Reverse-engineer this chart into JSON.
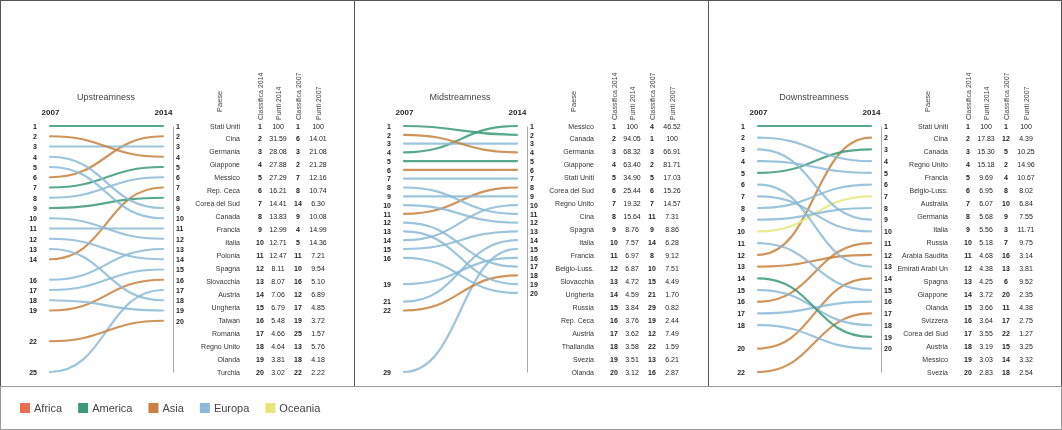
{
  "chart_data": [
    {
      "type": "line",
      "title": "Upstreamness",
      "categories": [
        "2007",
        "2014"
      ],
      "ylim": [
        25,
        1
      ],
      "yticks": [
        1,
        2,
        3,
        4,
        5,
        6,
        7,
        8,
        9,
        10,
        11,
        12,
        13,
        14,
        16,
        17,
        18,
        19,
        22,
        25
      ],
      "y2lim": [
        25,
        1
      ],
      "y2ticks": [
        1,
        2,
        3,
        4,
        5,
        6,
        7,
        8,
        9,
        10,
        11,
        12,
        13,
        14,
        15,
        16,
        17,
        18,
        19,
        20
      ],
      "series": [
        {
          "color": "#3a9a78",
          "values": [
            1,
            1
          ]
        },
        {
          "color": "#c8803c",
          "values": [
            6,
            2
          ]
        },
        {
          "color": "#8bbad6",
          "values": [
            3,
            3
          ]
        },
        {
          "color": "#c8803c",
          "values": [
            2,
            4
          ]
        },
        {
          "color": "#3a9a78",
          "values": [
            7,
            5
          ]
        },
        {
          "color": "#8bbad6",
          "values": [
            8,
            6
          ]
        },
        {
          "color": "#c8803c",
          "values": [
            14,
            7
          ]
        },
        {
          "color": "#3a9a78",
          "values": [
            9,
            8
          ]
        },
        {
          "color": "#8bbad6",
          "values": [
            4,
            9
          ]
        },
        {
          "color": "#8bbad6",
          "values": [
            5,
            10
          ]
        },
        {
          "color": "#8bbad6",
          "values": [
            11,
            11
          ]
        },
        {
          "color": "#8bbad6",
          "values": [
            10,
            12
          ]
        },
        {
          "color": "#8bbad6",
          "values": [
            16,
            13
          ]
        },
        {
          "color": "#8bbad6",
          "values": [
            12,
            14
          ]
        },
        {
          "color": "#8bbad6",
          "values": [
            17,
            15
          ]
        },
        {
          "color": "#c8803c",
          "values": [
            19,
            16
          ]
        },
        {
          "color": "#8bbad6",
          "values": [
            25,
            17
          ]
        },
        {
          "color": "#8bbad6",
          "values": [
            13,
            18
          ]
        },
        {
          "color": "#8bbad6",
          "values": [
            18,
            19
          ]
        },
        {
          "color": "#c8803c",
          "values": [
            22,
            20
          ]
        }
      ]
    },
    {
      "type": "other",
      "ylabel": "Paese",
      "data_labels": true,
      "categories": [
        "Stati Uniti",
        "Cina",
        "Germania",
        "Giappone",
        "Messico",
        "Rep. Ceca",
        "Corea del Sud",
        "Canada",
        "Francia",
        "Italia",
        "Polonia",
        "Spagna",
        "Slovacchia",
        "Austria",
        "Ungheria",
        "Taiwan",
        "Romania",
        "Regno Unito",
        "Olanda",
        "Turchia"
      ],
      "series": [
        {
          "name": "Classifica 2014",
          "values": [
            1,
            2,
            3,
            4,
            5,
            6,
            7,
            8,
            9,
            10,
            11,
            12,
            13,
            14,
            15,
            16,
            17,
            18,
            19,
            20
          ]
        },
        {
          "name": "Punti 2014",
          "values": [
            100,
            31.59,
            28.08,
            27.88,
            27.29,
            16.21,
            14.41,
            13.83,
            12.99,
            12.71,
            12.47,
            8.11,
            8.07,
            7.06,
            6.79,
            5.48,
            4.66,
            4.64,
            3.81,
            3.02
          ],
          "value_labels": [
            "100",
            "31.59",
            "28.08",
            "27.88",
            "27.29",
            "16.21",
            "14.41",
            "13.83",
            "12.99",
            "12.71",
            "12.47",
            "8.11",
            "8.07",
            "7.06",
            "6.79",
            "5.48",
            "4.66",
            "4.64",
            "3.81",
            "3.02"
          ]
        },
        {
          "name": "Classifica 2007",
          "values": [
            1,
            6,
            3,
            2,
            7,
            8,
            14,
            9,
            4,
            5,
            11,
            10,
            16,
            12,
            17,
            19,
            25,
            13,
            18,
            22
          ]
        },
        {
          "name": "Punti 2007",
          "values": [
            100,
            14.01,
            21.08,
            21.28,
            12.16,
            10.74,
            6.3,
            10.08,
            14.99,
            14.36,
            7.21,
            9.54,
            5.1,
            6.89,
            4.85,
            3.72,
            1.57,
            5.76,
            4.18,
            2.22
          ],
          "value_labels": [
            "100",
            "14.01",
            "21.08",
            "21.28",
            "12.16",
            "10.74",
            "6.30",
            "10.08",
            "14.99",
            "14.36",
            "7.21",
            "9.54",
            "5.10",
            "6.89",
            "4.85",
            "3.72",
            "1.57",
            "5.76",
            "4.18",
            "2.22"
          ]
        }
      ]
    },
    {
      "type": "line",
      "title": "Midstreamness",
      "categories": [
        "2007",
        "2014"
      ],
      "ylim": [
        29,
        1
      ],
      "yticks": [
        1,
        2,
        3,
        4,
        5,
        6,
        7,
        8,
        9,
        10,
        11,
        12,
        13,
        14,
        15,
        16,
        19,
        21,
        22,
        29
      ],
      "y2lim": [
        29,
        1
      ],
      "y2ticks": [
        1,
        2,
        3,
        4,
        5,
        6,
        7,
        8,
        9,
        10,
        11,
        12,
        13,
        14,
        15,
        16,
        17,
        18,
        19,
        20
      ],
      "series": [
        {
          "color": "#3a9a78",
          "values": [
            4,
            1
          ]
        },
        {
          "color": "#3a9a78",
          "values": [
            1,
            2
          ]
        },
        {
          "color": "#8bbad6",
          "values": [
            3,
            3
          ]
        },
        {
          "color": "#c8803c",
          "values": [
            2,
            4
          ]
        },
        {
          "color": "#3a9a78",
          "values": [
            5,
            5
          ]
        },
        {
          "color": "#c8803c",
          "values": [
            6,
            6
          ]
        },
        {
          "color": "#8bbad6",
          "values": [
            7,
            7
          ]
        },
        {
          "color": "#c8803c",
          "values": [
            11,
            8
          ]
        },
        {
          "color": "#8bbad6",
          "values": [
            9,
            9
          ]
        },
        {
          "color": "#8bbad6",
          "values": [
            14,
            10
          ]
        },
        {
          "color": "#8bbad6",
          "values": [
            8,
            11
          ]
        },
        {
          "color": "#8bbad6",
          "values": [
            10,
            12
          ]
        },
        {
          "color": "#8bbad6",
          "values": [
            15,
            13
          ]
        },
        {
          "color": "#8bbad6",
          "values": [
            21,
            14
          ]
        },
        {
          "color": "#8bbad6",
          "values": [
            29,
            15
          ]
        },
        {
          "color": "#8bbad6",
          "values": [
            19,
            16
          ]
        },
        {
          "color": "#8bbad6",
          "values": [
            12,
            17
          ]
        },
        {
          "color": "#c8803c",
          "values": [
            22,
            18
          ]
        },
        {
          "color": "#8bbad6",
          "values": [
            13,
            19
          ]
        },
        {
          "color": "#8bbad6",
          "values": [
            16,
            20
          ]
        }
      ]
    },
    {
      "type": "other",
      "ylabel": "Paese",
      "data_labels": true,
      "categories": [
        "Messico",
        "Canada",
        "Germania",
        "Giappone",
        "Stati Uniti",
        "Corea del Sud",
        "Regno Unito",
        "Cina",
        "Spagna",
        "Italia",
        "Francia",
        "Belgio-Luss.",
        "Slovacchia",
        "Ungheria",
        "Russia",
        "Rep. Ceca",
        "Austria",
        "Thailandia",
        "Svezia",
        "Olanda"
      ],
      "series": [
        {
          "name": "Classifica 2014",
          "values": [
            1,
            2,
            3,
            4,
            5,
            6,
            7,
            8,
            9,
            10,
            11,
            12,
            13,
            14,
            15,
            16,
            17,
            18,
            19,
            20
          ]
        },
        {
          "name": "Punti 2014",
          "values": [
            100,
            94.05,
            68.32,
            63.4,
            34.9,
            25.44,
            19.32,
            15.64,
            8.76,
            7.57,
            6.97,
            6.87,
            4.72,
            4.59,
            3.84,
            3.76,
            3.62,
            3.58,
            3.51,
            3.12
          ],
          "value_labels": [
            "100",
            "94.05",
            "68.32",
            "63.40",
            "34.90",
            "25.44",
            "19.32",
            "15.64",
            "8.76",
            "7.57",
            "6.97",
            "6.87",
            "4.72",
            "4.59",
            "3.84",
            "3.76",
            "3.62",
            "3.58",
            "3.51",
            "3.12"
          ]
        },
        {
          "name": "Classifica 2007",
          "values": [
            4,
            1,
            3,
            2,
            5,
            6,
            7,
            11,
            9,
            14,
            8,
            10,
            15,
            21,
            29,
            19,
            12,
            22,
            13,
            16
          ]
        },
        {
          "name": "Punti 2007",
          "values": [
            46.52,
            100,
            66.91,
            81.71,
            17.03,
            15.26,
            14.57,
            7.31,
            8.86,
            6.28,
            9.12,
            7.51,
            4.49,
            1.7,
            0.82,
            2.44,
            7.49,
            1.59,
            6.21,
            2.87
          ],
          "value_labels": [
            "46.52",
            "100",
            "66.91",
            "81.71",
            "17.03",
            "15.26",
            "14.57",
            "7.31",
            "8.86",
            "6.28",
            "9.12",
            "7.51",
            "4.49",
            "1.70",
            "0.82",
            "2.44",
            "7.49",
            "1.59",
            "6.21",
            "2.87"
          ]
        }
      ]
    },
    {
      "type": "line",
      "title": "Downstreamness",
      "categories": [
        "2007",
        "2014"
      ],
      "ylim": [
        22,
        1
      ],
      "yticks": [
        1,
        2,
        3,
        4,
        5,
        6,
        7,
        8,
        9,
        10,
        11,
        12,
        13,
        14,
        15,
        16,
        17,
        18,
        20,
        22
      ],
      "y2lim": [
        22,
        1
      ],
      "y2ticks": [
        1,
        2,
        3,
        4,
        5,
        6,
        7,
        8,
        9,
        10,
        11,
        12,
        13,
        14,
        15,
        16,
        17,
        18,
        19,
        20
      ],
      "series": [
        {
          "color": "#3a9a78",
          "values": [
            1,
            1
          ]
        },
        {
          "color": "#c8803c",
          "values": [
            12,
            2
          ]
        },
        {
          "color": "#3a9a78",
          "values": [
            5,
            3
          ]
        },
        {
          "color": "#8bbad6",
          "values": [
            2,
            4
          ]
        },
        {
          "color": "#8bbad6",
          "values": [
            4,
            5
          ]
        },
        {
          "color": "#8bbad6",
          "values": [
            8,
            6
          ]
        },
        {
          "color": "#e6e67a",
          "values": [
            10,
            7
          ]
        },
        {
          "color": "#8bbad6",
          "values": [
            9,
            8
          ]
        },
        {
          "color": "#8bbad6",
          "values": [
            3,
            9
          ]
        },
        {
          "color": "#8bbad6",
          "values": [
            7,
            10
          ]
        },
        {
          "color": "#c8803c",
          "values": [
            16,
            11
          ]
        },
        {
          "color": "#c8803c",
          "values": [
            13,
            12
          ]
        },
        {
          "color": "#8bbad6",
          "values": [
            6,
            13
          ]
        },
        {
          "color": "#c8803c",
          "values": [
            20,
            14
          ]
        },
        {
          "color": "#8bbad6",
          "values": [
            11,
            15
          ]
        },
        {
          "color": "#8bbad6",
          "values": [
            17,
            16
          ]
        },
        {
          "color": "#c8803c",
          "values": [
            22,
            17
          ]
        },
        {
          "color": "#8bbad6",
          "values": [
            15,
            18
          ]
        },
        {
          "color": "#3a9a78",
          "values": [
            14,
            19
          ]
        },
        {
          "color": "#8bbad6",
          "values": [
            18,
            20
          ]
        }
      ]
    },
    {
      "type": "other",
      "ylabel": "Paese",
      "data_labels": true,
      "categories": [
        "Stati Uniti",
        "Cina",
        "Canada",
        "Regno Unito",
        "Francia",
        "Belgio-Luss.",
        "Australia",
        "Germania",
        "Italia",
        "Russia",
        "Arabia Saudita",
        "Emirati Arabi Un",
        "Spagna",
        "Giappone",
        "Olanda",
        "Svizzera",
        "Corea del Sud",
        "Austria",
        "Messico",
        "Svezia"
      ],
      "series": [
        {
          "name": "Classifica 2014",
          "values": [
            1,
            2,
            3,
            4,
            5,
            6,
            7,
            8,
            9,
            10,
            11,
            12,
            13,
            14,
            15,
            16,
            17,
            18,
            19,
            20
          ]
        },
        {
          "name": "Punti 2014",
          "values": [
            100,
            17.83,
            15.3,
            15.18,
            9.69,
            6.95,
            6.07,
            5.68,
            5.56,
            5.18,
            4.68,
            4.38,
            4.25,
            3.72,
            3.66,
            3.64,
            3.55,
            3.19,
            3.03,
            2.83
          ],
          "value_labels": [
            "100",
            "17.83",
            "15.30",
            "15.18",
            "9.69",
            "6.95",
            "6.07",
            "5.68",
            "5.56",
            "5.18",
            "4.68",
            "4.38",
            "4.25",
            "3.72",
            "3.66",
            "3.64",
            "3.55",
            "3.19",
            "3.03",
            "2.83"
          ]
        },
        {
          "name": "Classifica 2007",
          "values": [
            1,
            12,
            5,
            2,
            4,
            8,
            10,
            9,
            3,
            7,
            16,
            13,
            6,
            20,
            11,
            17,
            22,
            15,
            14,
            18
          ]
        },
        {
          "name": "Punti 2007",
          "values": [
            100,
            4.39,
            10.25,
            14.96,
            10.67,
            8.02,
            6.84,
            7.55,
            11.71,
            9.75,
            3.14,
            3.81,
            9.52,
            2.35,
            4.38,
            2.75,
            1.27,
            3.25,
            3.32,
            2.54
          ],
          "value_labels": [
            "100",
            "4.39",
            "10.25",
            "14.96",
            "10.67",
            "8.02",
            "6.84",
            "7.55",
            "11.71",
            "9.75",
            "3.14",
            "3.81",
            "9.52",
            "2.35",
            "4.38",
            "2.75",
            "1.27",
            "3.25",
            "3.32",
            "2.54"
          ]
        }
      ]
    },
    {
      "type": "other",
      "categories": [
        "Africa",
        "America",
        "Asia",
        "Europa",
        "Oceania"
      ],
      "colors": [
        "#e8704e",
        "#3a9a78",
        "#c8803c",
        "#8bbad6",
        "#e6e67a"
      ]
    }
  ]
}
